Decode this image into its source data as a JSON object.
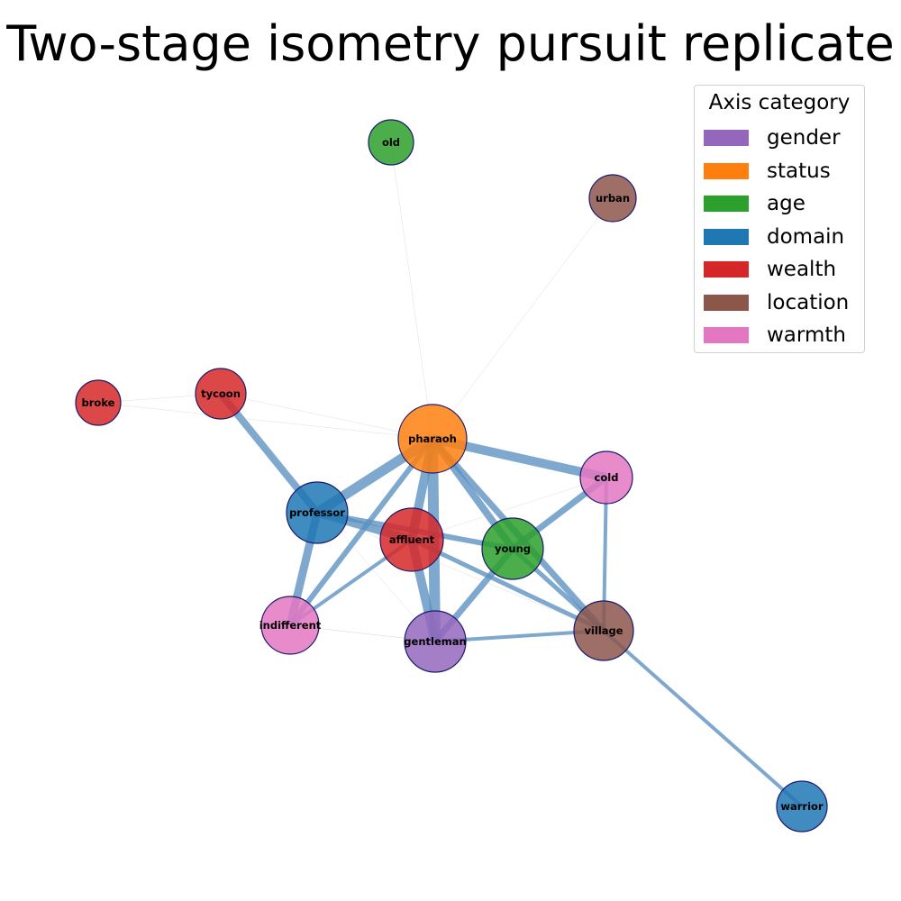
{
  "title": "Two-stage isometry pursuit replicate",
  "legend": {
    "title": "Axis category",
    "items": [
      {
        "label": "gender",
        "color": "#9467bd"
      },
      {
        "label": "status",
        "color": "#ff7f0e"
      },
      {
        "label": "age",
        "color": "#2ca02c"
      },
      {
        "label": "domain",
        "color": "#1f77b4"
      },
      {
        "label": "wealth",
        "color": "#d62728"
      },
      {
        "label": "location",
        "color": "#8c564b"
      },
      {
        "label": "warmth",
        "color": "#e377c2"
      }
    ]
  },
  "nodes": [
    {
      "id": "old",
      "label": "old",
      "category": "age"
    },
    {
      "id": "urban",
      "label": "urban",
      "category": "location"
    },
    {
      "id": "broke",
      "label": "broke",
      "category": "wealth"
    },
    {
      "id": "tycoon",
      "label": "tycoon",
      "category": "wealth"
    },
    {
      "id": "pharaoh",
      "label": "pharaoh",
      "category": "status"
    },
    {
      "id": "cold",
      "label": "cold",
      "category": "warmth"
    },
    {
      "id": "professor",
      "label": "professor",
      "category": "domain"
    },
    {
      "id": "affluent",
      "label": "affluent",
      "category": "wealth"
    },
    {
      "id": "young",
      "label": "young",
      "category": "age"
    },
    {
      "id": "indifferent",
      "label": "indifferent",
      "category": "warmth"
    },
    {
      "id": "gentleman",
      "label": "gentleman",
      "category": "gender"
    },
    {
      "id": "village",
      "label": "village",
      "category": "location"
    },
    {
      "id": "warrior",
      "label": "warrior",
      "category": "domain"
    }
  ],
  "edges": [
    {
      "source": "pharaoh",
      "target": "cold",
      "weight": 10
    },
    {
      "source": "pharaoh",
      "target": "professor",
      "weight": 11
    },
    {
      "source": "pharaoh",
      "target": "affluent",
      "weight": 10
    },
    {
      "source": "pharaoh",
      "target": "gentleman",
      "weight": 12
    },
    {
      "source": "pharaoh",
      "target": "indifferent",
      "weight": 6
    },
    {
      "source": "pharaoh",
      "target": "village",
      "weight": 7
    },
    {
      "source": "pharaoh",
      "target": "young",
      "weight": 8
    },
    {
      "source": "tycoon",
      "target": "professor",
      "weight": 8
    },
    {
      "source": "professor",
      "target": "affluent",
      "weight": 9
    },
    {
      "source": "professor",
      "target": "young",
      "weight": 6
    },
    {
      "source": "professor",
      "target": "indifferent",
      "weight": 9
    },
    {
      "source": "affluent",
      "target": "gentleman",
      "weight": 10
    },
    {
      "source": "affluent",
      "target": "village",
      "weight": 5
    },
    {
      "source": "affluent",
      "target": "indifferent",
      "weight": 4
    },
    {
      "source": "young",
      "target": "cold",
      "weight": 7
    },
    {
      "source": "young",
      "target": "gentleman",
      "weight": 7
    },
    {
      "source": "young",
      "target": "village",
      "weight": 5
    },
    {
      "source": "cold",
      "target": "village",
      "weight": 4
    },
    {
      "source": "gentleman",
      "target": "village",
      "weight": 4
    },
    {
      "source": "village",
      "target": "warrior",
      "weight": 4
    },
    {
      "source": "old",
      "target": "pharaoh",
      "weight": 0.4
    },
    {
      "source": "urban",
      "target": "pharaoh",
      "weight": 0.4
    },
    {
      "source": "broke",
      "target": "tycoon",
      "weight": 0.4
    },
    {
      "source": "broke",
      "target": "pharaoh",
      "weight": 0.4
    },
    {
      "source": "tycoon",
      "target": "pharaoh",
      "weight": 0.4
    },
    {
      "source": "tycoon",
      "target": "gentleman",
      "weight": 0.4
    },
    {
      "source": "indifferent",
      "target": "gentleman",
      "weight": 0.5
    },
    {
      "source": "cold",
      "target": "affluent",
      "weight": 0.4
    },
    {
      "source": "professor",
      "target": "village",
      "weight": 0.4
    }
  ]
}
